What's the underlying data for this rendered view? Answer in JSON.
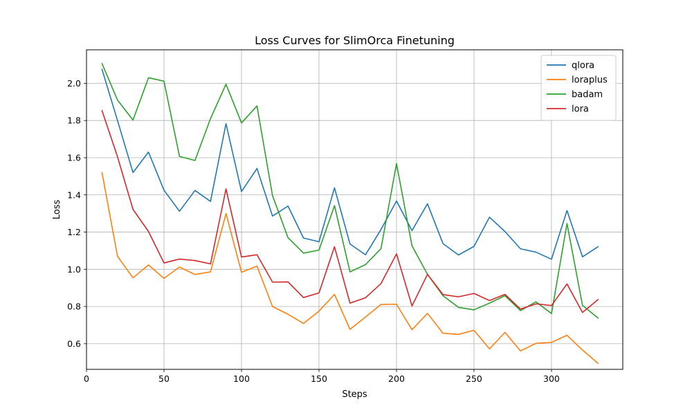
{
  "chart_data": {
    "type": "line",
    "title": "Loss Curves for SlimOrca Finetuning",
    "xlabel": "Steps",
    "ylabel": "Loss",
    "xlim": [
      0,
      346
    ],
    "ylim": [
      0.462,
      2.18
    ],
    "xticks": [
      0,
      50,
      100,
      150,
      200,
      250,
      300
    ],
    "yticks": [
      0.6,
      0.8,
      1.0,
      1.2,
      1.4,
      1.6,
      1.8,
      2.0
    ],
    "ytick_labels": [
      "0.6",
      "0.8",
      "1.0",
      "1.2",
      "1.4",
      "1.6",
      "1.8",
      "2.0"
    ],
    "grid": true,
    "legend_position": "top-right",
    "x": [
      10,
      20,
      30,
      40,
      50,
      60,
      70,
      80,
      90,
      100,
      110,
      120,
      130,
      140,
      150,
      160,
      170,
      180,
      190,
      200,
      210,
      220,
      230,
      240,
      250,
      260,
      270,
      280,
      290,
      300,
      310,
      320,
      330
    ],
    "series": [
      {
        "name": "qlora",
        "color": "#1f77b4",
        "values": [
          2.075,
          1.8,
          1.52,
          1.63,
          1.425,
          1.312,
          1.424,
          1.365,
          1.783,
          1.418,
          1.542,
          1.286,
          1.34,
          1.168,
          1.148,
          1.438,
          1.136,
          1.078,
          1.214,
          1.367,
          1.208,
          1.352,
          1.138,
          1.077,
          1.123,
          1.28,
          1.203,
          1.11,
          1.092,
          1.054,
          1.316,
          1.067,
          1.121
        ]
      },
      {
        "name": "loraplus",
        "color": "#ff7f0e",
        "values": [
          1.52,
          1.07,
          0.954,
          1.023,
          0.951,
          1.012,
          0.972,
          0.986,
          1.3,
          0.984,
          1.017,
          0.8,
          0.758,
          0.709,
          0.775,
          0.865,
          0.677,
          0.743,
          0.811,
          0.812,
          0.675,
          0.763,
          0.656,
          0.65,
          0.672,
          0.572,
          0.661,
          0.561,
          0.602,
          0.607,
          0.645,
          0.566,
          0.494
        ]
      },
      {
        "name": "badam",
        "color": "#2ca02c",
        "values": [
          2.106,
          1.91,
          1.802,
          2.03,
          2.011,
          1.607,
          1.585,
          1.81,
          1.995,
          1.787,
          1.878,
          1.396,
          1.17,
          1.087,
          1.103,
          1.342,
          0.986,
          1.025,
          1.111,
          1.568,
          1.126,
          0.973,
          0.858,
          0.795,
          0.782,
          0.818,
          0.858,
          0.778,
          0.825,
          0.762,
          1.246,
          0.806,
          0.738
        ]
      },
      {
        "name": "lora",
        "color": "#d62728",
        "values": [
          1.853,
          1.605,
          1.322,
          1.203,
          1.034,
          1.055,
          1.047,
          1.029,
          1.432,
          1.066,
          1.078,
          0.931,
          0.932,
          0.848,
          0.873,
          1.121,
          0.818,
          0.847,
          0.923,
          1.083,
          0.803,
          0.973,
          0.864,
          0.852,
          0.87,
          0.832,
          0.865,
          0.786,
          0.814,
          0.805,
          0.921,
          0.768,
          0.837
        ]
      }
    ]
  }
}
